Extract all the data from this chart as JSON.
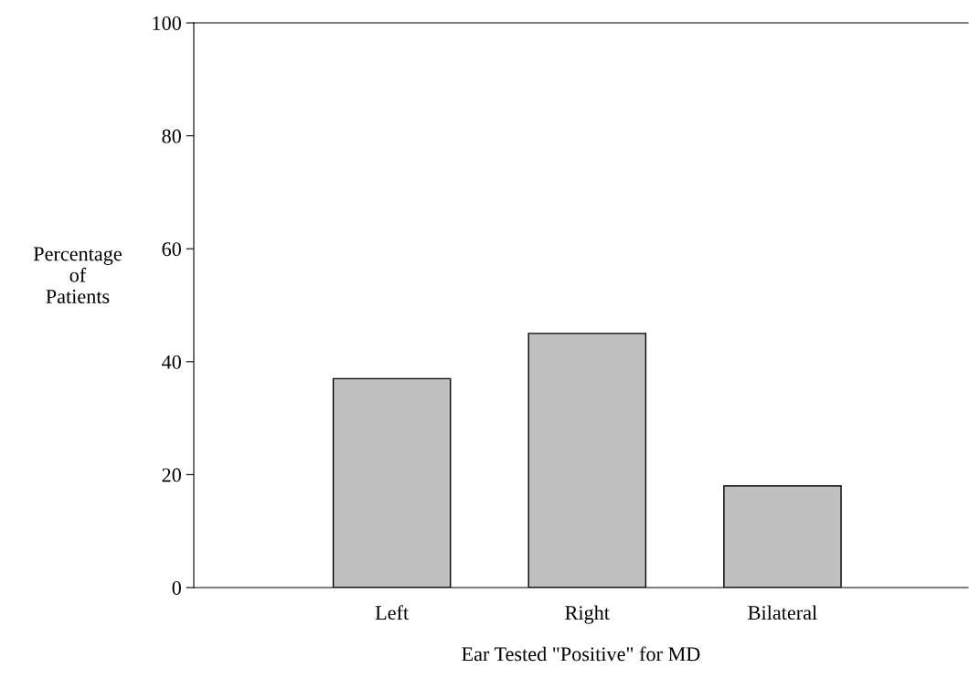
{
  "chart_data": {
    "type": "bar",
    "xlabel": "Ear Tested \"Positive\" for MD",
    "ylabel": "Percentage\nof\nPatients",
    "categories": [
      "Left",
      "Right",
      "Bilateral"
    ],
    "values": [
      37,
      45,
      18
    ],
    "color": "#c0c0c0",
    "ylim": [
      0,
      100
    ],
    "yticks": [
      0,
      20,
      40,
      60,
      80,
      100
    ],
    "grid": false
  }
}
